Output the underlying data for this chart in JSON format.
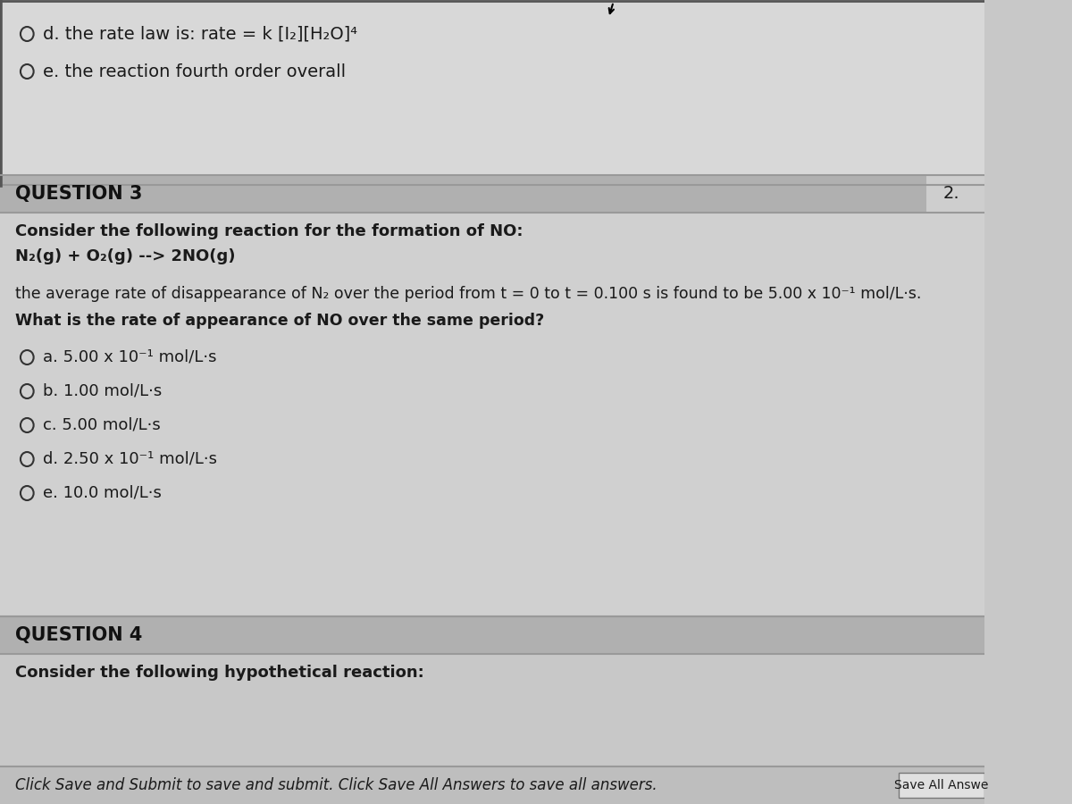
{
  "bg_color": "#c8c8c8",
  "top_bg": "#d8d8d8",
  "body_bg": "#d0d0d0",
  "header_bg": "#b0b0b0",
  "footer_bg": "#bebebe",
  "text_color": "#1a1a1a",
  "header_text_color": "#111111",
  "top_items": [
    "d. the rate law is: rate = k [I₂][H₂O]⁴",
    "e. the reaction fourth order overall"
  ],
  "question3_header": "QUESTION 3",
  "question3_number": "2.",
  "question3_intro": "Consider the following reaction for the formation of NO:",
  "question3_reaction": "N₂(g) + O₂(g) --> 2NO(g)",
  "question3_body1": "the average rate of disappearance of N₂ over the period from t = 0 to t = 0.100 s is found to be 5.00 x 10⁻¹ mol/L·s.",
  "question3_body2": "What is the rate of appearance of NO over the same period?",
  "question3_choices": [
    "a. 5.00 x 10⁻¹ mol/L·s",
    "b. 1.00 mol/L·s",
    "c. 5.00 mol/L·s",
    "d. 2.50 x 10⁻¹ mol/L·s",
    "e. 10.0 mol/L·s"
  ],
  "question4_header": "QUESTION 4",
  "question4_body": "Consider the following hypothetical reaction:",
  "footer_text": "Click Save and Submit to save and submit. Click Save All Answers to save all answers.",
  "footer_btn": "Save All Answe"
}
